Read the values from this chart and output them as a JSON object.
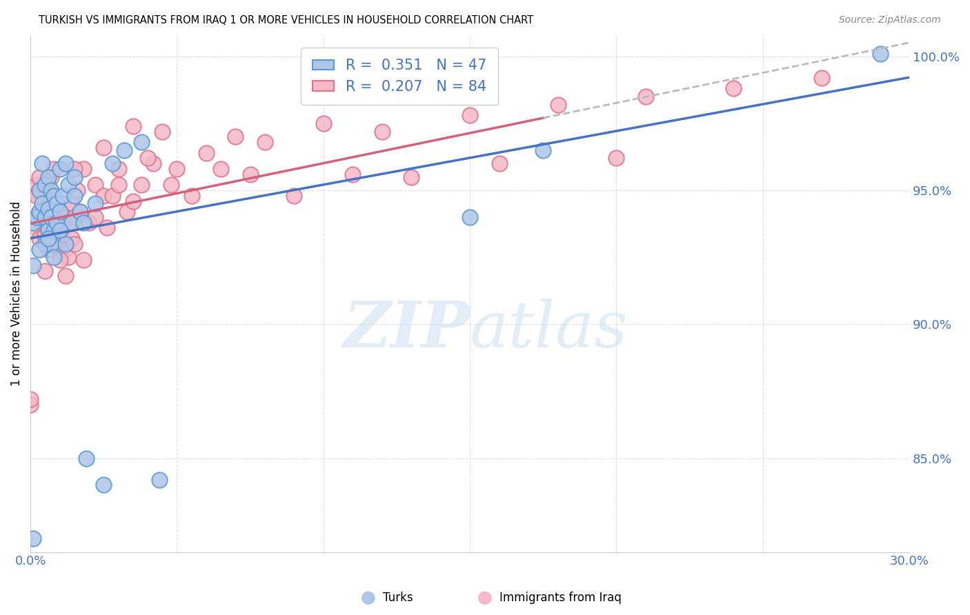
{
  "title": "TURKISH VS IMMIGRANTS FROM IRAQ 1 OR MORE VEHICLES IN HOUSEHOLD CORRELATION CHART",
  "source": "Source: ZipAtlas.com",
  "ylabel": "1 or more Vehicles in Household",
  "legend_turks": "Turks",
  "legend_iraq": "Immigrants from Iraq",
  "R_turks": 0.351,
  "N_turks": 47,
  "R_iraq": 0.207,
  "N_iraq": 84,
  "color_turks_fill": "#aec6e8",
  "color_turks_edge": "#5b9bd5",
  "color_iraq_fill": "#f4b8c8",
  "color_iraq_edge": "#e0748a",
  "color_line_turks": "#4472c4",
  "color_line_iraq": "#d4607a",
  "color_dash": "#bbbbbb",
  "turks_x": [
    0.001,
    0.001,
    0.002,
    0.003,
    0.003,
    0.004,
    0.004,
    0.005,
    0.005,
    0.005,
    0.006,
    0.006,
    0.006,
    0.007,
    0.007,
    0.007,
    0.008,
    0.008,
    0.009,
    0.009,
    0.01,
    0.01,
    0.011,
    0.012,
    0.013,
    0.014,
    0.015,
    0.017,
    0.019,
    0.022,
    0.025,
    0.028,
    0.032,
    0.038,
    0.044,
    0.12,
    0.15,
    0.175,
    0.29,
    0.001,
    0.003,
    0.006,
    0.008,
    0.01,
    0.012,
    0.015,
    0.018
  ],
  "turks_y": [
    0.82,
    0.938,
    0.94,
    0.942,
    0.95,
    0.945,
    0.96,
    0.93,
    0.94,
    0.952,
    0.935,
    0.943,
    0.955,
    0.93,
    0.94,
    0.95,
    0.935,
    0.948,
    0.938,
    0.945,
    0.942,
    0.958,
    0.948,
    0.96,
    0.952,
    0.938,
    0.955,
    0.942,
    0.85,
    0.945,
    0.84,
    0.96,
    0.965,
    0.968,
    0.842,
    0.988,
    0.94,
    0.965,
    1.001,
    0.922,
    0.928,
    0.932,
    0.925,
    0.935,
    0.93,
    0.948,
    0.938
  ],
  "iraq_x": [
    0.0,
    0.001,
    0.001,
    0.002,
    0.002,
    0.003,
    0.003,
    0.003,
    0.004,
    0.004,
    0.005,
    0.005,
    0.005,
    0.006,
    0.006,
    0.006,
    0.007,
    0.007,
    0.007,
    0.008,
    0.008,
    0.008,
    0.009,
    0.009,
    0.01,
    0.01,
    0.011,
    0.011,
    0.012,
    0.012,
    0.013,
    0.013,
    0.014,
    0.014,
    0.015,
    0.016,
    0.017,
    0.018,
    0.02,
    0.022,
    0.025,
    0.028,
    0.03,
    0.033,
    0.038,
    0.042,
    0.048,
    0.055,
    0.065,
    0.075,
    0.09,
    0.11,
    0.13,
    0.16,
    0.2,
    0.0,
    0.002,
    0.004,
    0.006,
    0.008,
    0.01,
    0.012,
    0.015,
    0.018,
    0.022,
    0.026,
    0.03,
    0.035,
    0.04,
    0.05,
    0.06,
    0.07,
    0.08,
    0.1,
    0.12,
    0.15,
    0.18,
    0.21,
    0.24,
    0.27,
    0.015,
    0.025,
    0.035,
    0.045
  ],
  "iraq_y": [
    0.87,
    0.935,
    0.95,
    0.94,
    0.952,
    0.932,
    0.942,
    0.955,
    0.938,
    0.948,
    0.92,
    0.933,
    0.945,
    0.928,
    0.94,
    0.952,
    0.93,
    0.942,
    0.955,
    0.935,
    0.945,
    0.958,
    0.93,
    0.942,
    0.928,
    0.94,
    0.932,
    0.945,
    0.928,
    0.94,
    0.925,
    0.938,
    0.932,
    0.945,
    0.94,
    0.95,
    0.942,
    0.958,
    0.938,
    0.952,
    0.948,
    0.948,
    0.958,
    0.942,
    0.952,
    0.96,
    0.952,
    0.948,
    0.958,
    0.956,
    0.948,
    0.956,
    0.955,
    0.96,
    0.962,
    0.872,
    0.948,
    0.942,
    0.936,
    0.93,
    0.924,
    0.918,
    0.93,
    0.924,
    0.94,
    0.936,
    0.952,
    0.946,
    0.962,
    0.958,
    0.964,
    0.97,
    0.968,
    0.975,
    0.972,
    0.978,
    0.982,
    0.985,
    0.988,
    0.992,
    0.958,
    0.966,
    0.974,
    0.972
  ],
  "xlim": [
    0.0,
    0.3
  ],
  "ylim": [
    0.815,
    1.008
  ],
  "ytick_vals": [
    0.85,
    0.9,
    0.95,
    1.0
  ],
  "ytick_labels": [
    "85.0%",
    "90.0%",
    "95.0%",
    "100.0%"
  ],
  "xtick_vals": [
    0.0,
    0.05,
    0.1,
    0.15,
    0.2,
    0.25,
    0.3
  ],
  "grid_color": "#dddddd",
  "bg_color": "#ffffff",
  "axis_label_color": "#4472c4",
  "legend_box_color": "#f0f0f0",
  "turks_line_x_end": 0.3,
  "iraq_line_solid_end": 0.175,
  "iraq_line_dash_end": 0.3
}
